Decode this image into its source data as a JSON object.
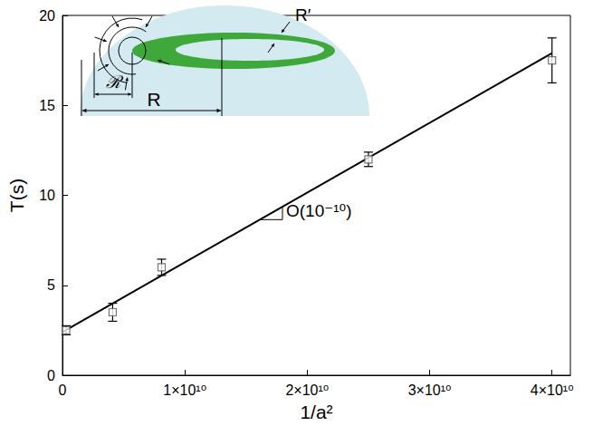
{
  "chart_data": {
    "type": "scatter",
    "x_label": "1/a²",
    "y_label": "T(s)",
    "x": [
      300000000,
      4100000000,
      8100000000,
      25000000000,
      40000000000
    ],
    "values": [
      2.5,
      3.5,
      6.0,
      12.0,
      17.5
    ],
    "error": [
      0.25,
      0.5,
      0.45,
      0.4,
      1.25
    ],
    "marker": "square",
    "color": "#555555",
    "fit": {
      "x": [
        0,
        40000000000
      ],
      "values": [
        2.4,
        17.9
      ],
      "color": "#000000",
      "line_style": "solid"
    },
    "xlim": [
      0,
      41500000000
    ],
    "xticks": [
      0,
      {
        "value": 10000000000,
        "label": "1×10¹⁰"
      },
      {
        "value": 20000000000,
        "label": "2×10¹⁰"
      },
      {
        "value": 30000000000,
        "label": "3×10¹⁰"
      },
      {
        "value": 40000000000,
        "label": "4×10¹⁰"
      }
    ],
    "ylim": [
      0,
      20
    ],
    "yticks": [
      0,
      5,
      10,
      15,
      20
    ],
    "grid": false,
    "annotations": [
      "O(10⁻¹⁰)"
    ],
    "inset_labels": [
      "ℛ",
      "R",
      "R′"
    ]
  }
}
